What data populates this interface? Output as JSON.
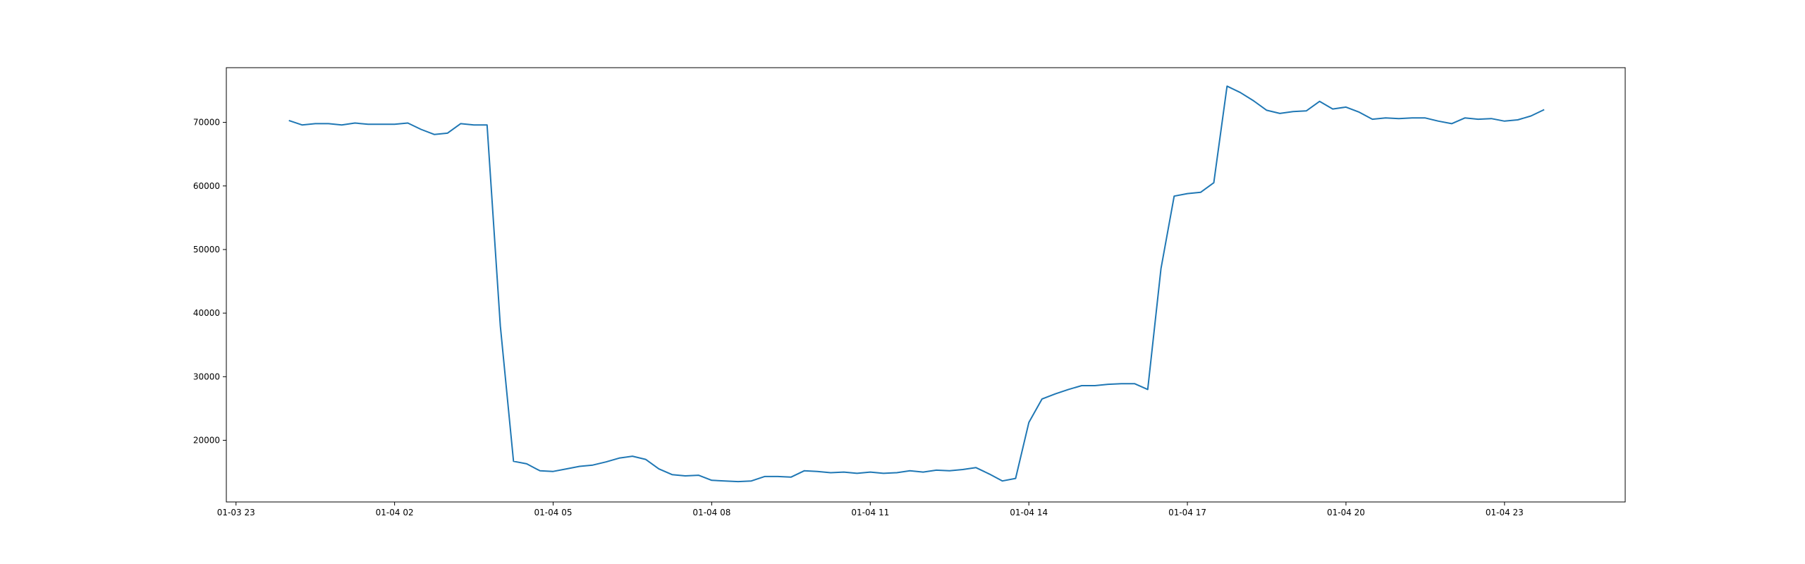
{
  "chart_data": {
    "type": "line",
    "title": "",
    "xlabel": "",
    "ylabel": "",
    "grid": false,
    "legend": "none",
    "x_ticks": [
      "01-03 23",
      "01-04 02",
      "01-04 05",
      "01-04 08",
      "01-04 11",
      "01-04 14",
      "01-04 17",
      "01-04 20",
      "01-04 23"
    ],
    "y_ticks": [
      20000,
      30000,
      40000,
      50000,
      60000,
      70000
    ],
    "xlim": [
      "2024-01-03 22:49",
      "2024-01-05 01:17"
    ],
    "ylim": [
      10300,
      78600
    ],
    "series": [
      {
        "color": "#1f77b4",
        "x": [
          "2024-01-04 00:00",
          "2024-01-04 00:15",
          "2024-01-04 00:30",
          "2024-01-04 00:45",
          "2024-01-04 01:00",
          "2024-01-04 01:15",
          "2024-01-04 01:30",
          "2024-01-04 01:45",
          "2024-01-04 02:00",
          "2024-01-04 02:15",
          "2024-01-04 02:30",
          "2024-01-04 02:45",
          "2024-01-04 03:00",
          "2024-01-04 03:15",
          "2024-01-04 03:30",
          "2024-01-04 03:45",
          "2024-01-04 04:00",
          "2024-01-04 04:15",
          "2024-01-04 04:30",
          "2024-01-04 04:45",
          "2024-01-04 05:00",
          "2024-01-04 05:15",
          "2024-01-04 05:30",
          "2024-01-04 05:45",
          "2024-01-04 06:00",
          "2024-01-04 06:15",
          "2024-01-04 06:30",
          "2024-01-04 06:45",
          "2024-01-04 07:00",
          "2024-01-04 07:15",
          "2024-01-04 07:30",
          "2024-01-04 07:45",
          "2024-01-04 08:00",
          "2024-01-04 08:15",
          "2024-01-04 08:30",
          "2024-01-04 08:45",
          "2024-01-04 09:00",
          "2024-01-04 09:15",
          "2024-01-04 09:30",
          "2024-01-04 09:45",
          "2024-01-04 10:00",
          "2024-01-04 10:15",
          "2024-01-04 10:30",
          "2024-01-04 10:45",
          "2024-01-04 11:00",
          "2024-01-04 11:15",
          "2024-01-04 11:30",
          "2024-01-04 11:45",
          "2024-01-04 12:00",
          "2024-01-04 12:15",
          "2024-01-04 12:30",
          "2024-01-04 12:45",
          "2024-01-04 13:00",
          "2024-01-04 13:15",
          "2024-01-04 13:30",
          "2024-01-04 13:45",
          "2024-01-04 14:00",
          "2024-01-04 14:15",
          "2024-01-04 14:30",
          "2024-01-04 14:45",
          "2024-01-04 15:00",
          "2024-01-04 15:15",
          "2024-01-04 15:30",
          "2024-01-04 15:45",
          "2024-01-04 16:00",
          "2024-01-04 16:15",
          "2024-01-04 16:30",
          "2024-01-04 16:45",
          "2024-01-04 17:00",
          "2024-01-04 17:15",
          "2024-01-04 17:30",
          "2024-01-04 17:45",
          "2024-01-04 18:00",
          "2024-01-04 18:15",
          "2024-01-04 18:30",
          "2024-01-04 18:45",
          "2024-01-04 19:00",
          "2024-01-04 19:15",
          "2024-01-04 19:30",
          "2024-01-04 19:45",
          "2024-01-04 20:00",
          "2024-01-04 20:15",
          "2024-01-04 20:30",
          "2024-01-04 20:45",
          "2024-01-04 21:00",
          "2024-01-04 21:15",
          "2024-01-04 21:30",
          "2024-01-04 21:45",
          "2024-01-04 22:00",
          "2024-01-04 22:15",
          "2024-01-04 22:30",
          "2024-01-04 22:45",
          "2024-01-04 23:00",
          "2024-01-04 23:15",
          "2024-01-04 23:30",
          "2024-01-04 23:45"
        ],
        "y": [
          70300,
          69600,
          69800,
          69800,
          69600,
          69900,
          69700,
          69700,
          69700,
          69900,
          68900,
          68100,
          68300,
          69800,
          69600,
          69600,
          38000,
          16700,
          16300,
          15200,
          15100,
          15500,
          15900,
          16100,
          16600,
          17200,
          17500,
          17000,
          15500,
          14600,
          14400,
          14500,
          13700,
          13600,
          13500,
          13600,
          14300,
          14300,
          14200,
          15200,
          15100,
          14900,
          15000,
          14800,
          15000,
          14800,
          14900,
          15200,
          15000,
          15300,
          15200,
          15400,
          15700,
          14700,
          13600,
          14000,
          22800,
          26500,
          27300,
          28000,
          28600,
          28600,
          28800,
          28900,
          28900,
          28000,
          47000,
          58400,
          58800,
          59000,
          60500,
          75700,
          74700,
          73400,
          71900,
          71400,
          71700,
          71800,
          73300,
          72100,
          72400,
          71600,
          70500,
          70700,
          70600,
          70700,
          70700,
          70200,
          69800,
          70700,
          70500,
          70600,
          70200,
          70400,
          71000,
          72000
        ]
      }
    ]
  }
}
